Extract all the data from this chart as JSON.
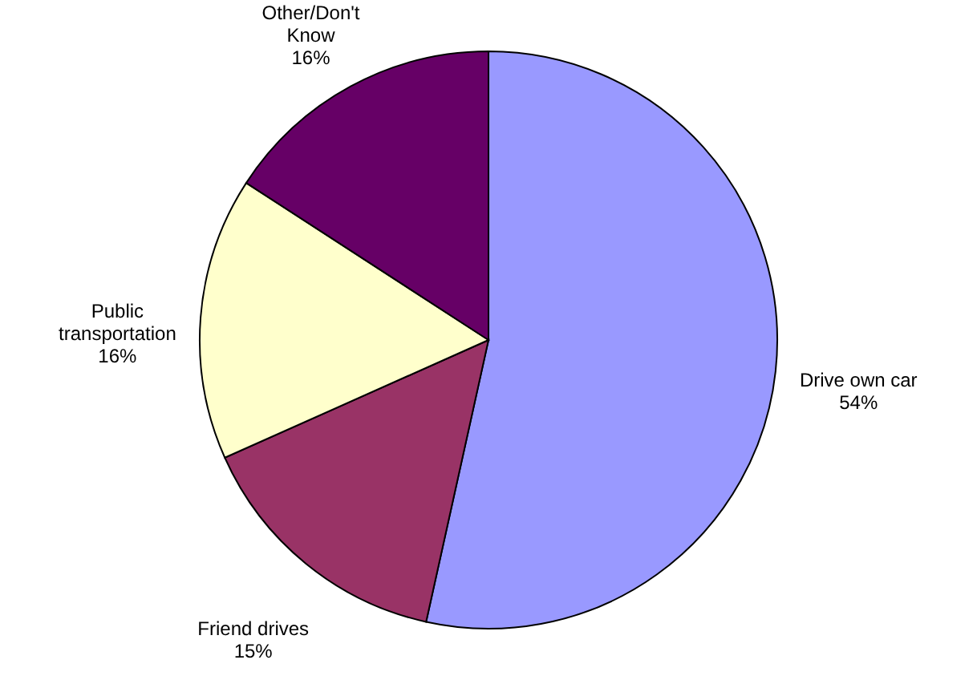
{
  "chart_data": {
    "type": "pie",
    "categories": [
      "Drive own car",
      "Friend drives",
      "Public transportation",
      "Other/Don't Know"
    ],
    "values": [
      54,
      15,
      16,
      16
    ],
    "value_labels": [
      "54%",
      "15%",
      "16%",
      "16%"
    ],
    "colors": [
      "#9999ff",
      "#993366",
      "#ffffcc",
      "#660066"
    ]
  }
}
